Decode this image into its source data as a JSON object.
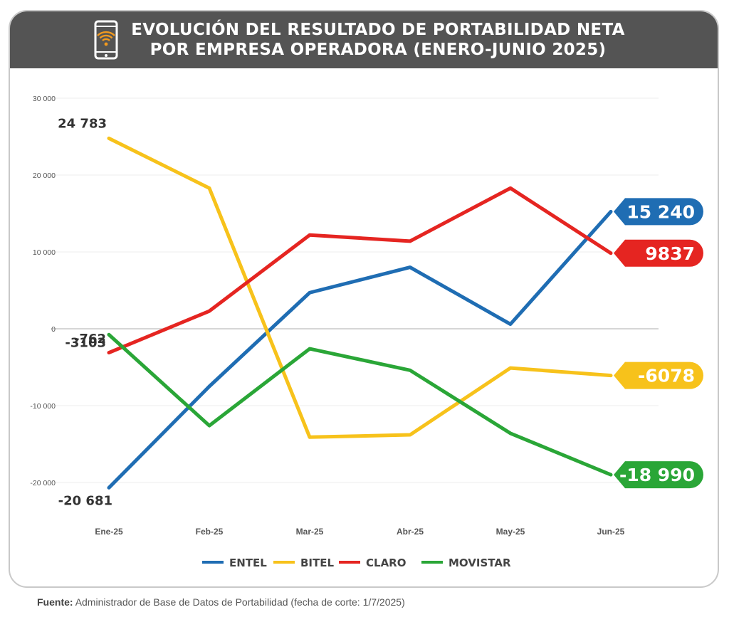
{
  "header": {
    "title_line1": "EVOLUCIÓN DEL RESULTADO DE PORTABILIDAD NETA",
    "title_line2": "POR EMPRESA OPERADORA (ENERO-JUNIO 2025)"
  },
  "source": {
    "label": "Fuente:",
    "text": "Administrador de Base de Datos de Portabilidad (fecha de corte: 1/7/2025)"
  },
  "chart_data": {
    "type": "line",
    "title": "EVOLUCIÓN DEL RESULTADO DE PORTABILIDAD NETA POR EMPRESA OPERADORA (ENERO-JUNIO 2025)",
    "categories": [
      "Ene-25",
      "Feb-25",
      "Mar-25",
      "Abr-25",
      "May-25",
      "Jun-25"
    ],
    "ylim": [
      -20000,
      30000
    ],
    "yticks": [
      30000,
      20000,
      10000,
      0,
      -10000,
      -20000
    ],
    "ytick_labels": [
      "30 000",
      "20 000",
      "10 000",
      "0",
      "-10 000",
      "-20 000"
    ],
    "grid": true,
    "legend_position": "bottom",
    "series": [
      {
        "name": "ENTEL",
        "color": "#1f6db3",
        "values": [
          -20681,
          -7500,
          4700,
          8000,
          600,
          15240
        ]
      },
      {
        "name": "BITEL",
        "color": "#f7c21b",
        "values": [
          24783,
          18300,
          -14100,
          -13800,
          -5100,
          -6078
        ]
      },
      {
        "name": "CLARO",
        "color": "#e52521",
        "values": [
          -3103,
          2300,
          12200,
          11400,
          18300,
          9837
        ]
      },
      {
        "name": "MOVISTAR",
        "color": "#2aa637",
        "values": [
          -762,
          -12600,
          -2600,
          -5400,
          -13600,
          -18990
        ]
      }
    ],
    "start_labels": [
      {
        "series": "BITEL",
        "text": "24 783"
      },
      {
        "series": "MOVISTAR",
        "text": "-762"
      },
      {
        "series": "CLARO",
        "text": "-3103"
      },
      {
        "series": "ENTEL",
        "text": "-20 681"
      }
    ],
    "end_labels": [
      {
        "series": "ENTEL",
        "text": "15 240"
      },
      {
        "series": "CLARO",
        "text": "9837"
      },
      {
        "series": "BITEL",
        "text": "-6078"
      },
      {
        "series": "MOVISTAR",
        "text": "-18 990"
      }
    ]
  }
}
